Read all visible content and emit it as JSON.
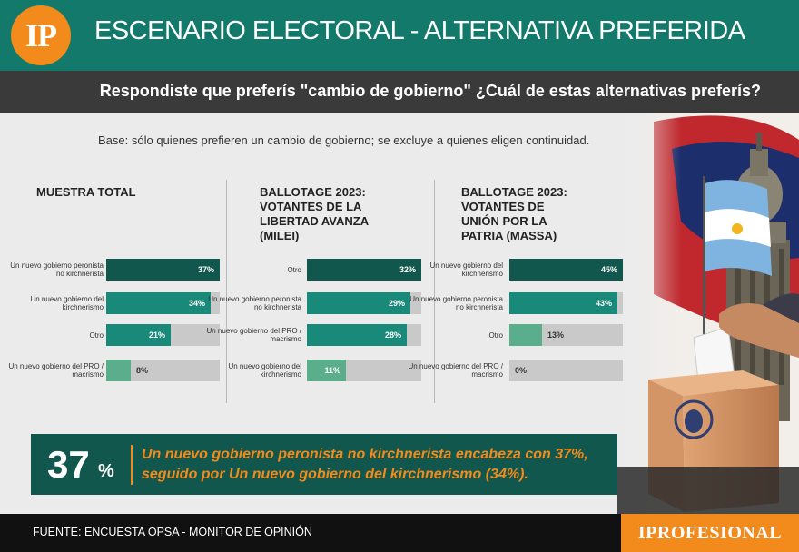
{
  "header": {
    "logo": "IP",
    "title": "ESCENARIO ELECTORAL - ALTERNATIVA PREFERIDA"
  },
  "question": "Respondiste que preferís \"cambio de gobierno\"  ¿Cuál de estas alternativas preferís?",
  "base": "Base: sólo quienes prefieren un cambio de gobierno; se excluye a quienes eligen continuidad.",
  "colors": {
    "dark": "#12574d",
    "medium": "#19897a",
    "light": "#5aae8b",
    "track": "#c9c9ca",
    "accent": "#f28a1c"
  },
  "chart_data": [
    {
      "type": "bar",
      "title": "MUESTRA TOTAL",
      "categories": [
        "Un nuevo gobierno peronista no kirchnerista",
        "Un nuevo gobierno del kirchnerismo",
        "Otro",
        "Un nuevo gobierno del PRO / macrismo"
      ],
      "values": [
        37,
        34,
        21,
        8
      ],
      "labels": [
        "37%",
        "34%",
        "21%",
        "8%"
      ],
      "colors": [
        "#12574d",
        "#19897a",
        "#19897a",
        "#5aae8b"
      ],
      "xlim": [
        0,
        37
      ]
    },
    {
      "type": "bar",
      "title": "BALLOTAGE 2023: VOTANTES DE LA LIBERTAD AVANZA (MILEI)",
      "categories": [
        "Otro",
        "Un nuevo gobierno peronista no kirchnerista",
        "Un nuevo gobierno del PRO / macrismo",
        "Un nuevo gobierno del kirchnerismo"
      ],
      "values": [
        32,
        29,
        28,
        11
      ],
      "labels": [
        "32%",
        "29%",
        "28%",
        "11%"
      ],
      "colors": [
        "#12574d",
        "#19897a",
        "#19897a",
        "#5aae8b"
      ],
      "xlim": [
        0,
        32
      ]
    },
    {
      "type": "bar",
      "title": "BALLOTAGE 2023: VOTANTES DE UNIÓN POR LA PATRIA (MASSA)",
      "categories": [
        "Un nuevo gobierno del kirchnerismo",
        "Un nuevo gobierno peronista no kirchnerista",
        "Otro",
        "Un nuevo gobierno del PRO / macrismo"
      ],
      "values": [
        45,
        43,
        13,
        0
      ],
      "labels": [
        "45%",
        "43%",
        "13%",
        "0%"
      ],
      "colors": [
        "#12574d",
        "#19897a",
        "#5aae8b",
        "#5aae8b"
      ],
      "xlim": [
        0,
        45
      ]
    }
  ],
  "callout": {
    "big_number": "37",
    "percent_sign": "%",
    "text": "Un nuevo gobierno peronista no kirchnerista encabeza con 37%, seguido por Un nuevo gobierno del kirchnerismo (34%)."
  },
  "footer": {
    "source": "FUENTE: ENCUESTA OPSA - MONITOR DE OPINIÓN",
    "brand": "IPROFESIONAL"
  }
}
